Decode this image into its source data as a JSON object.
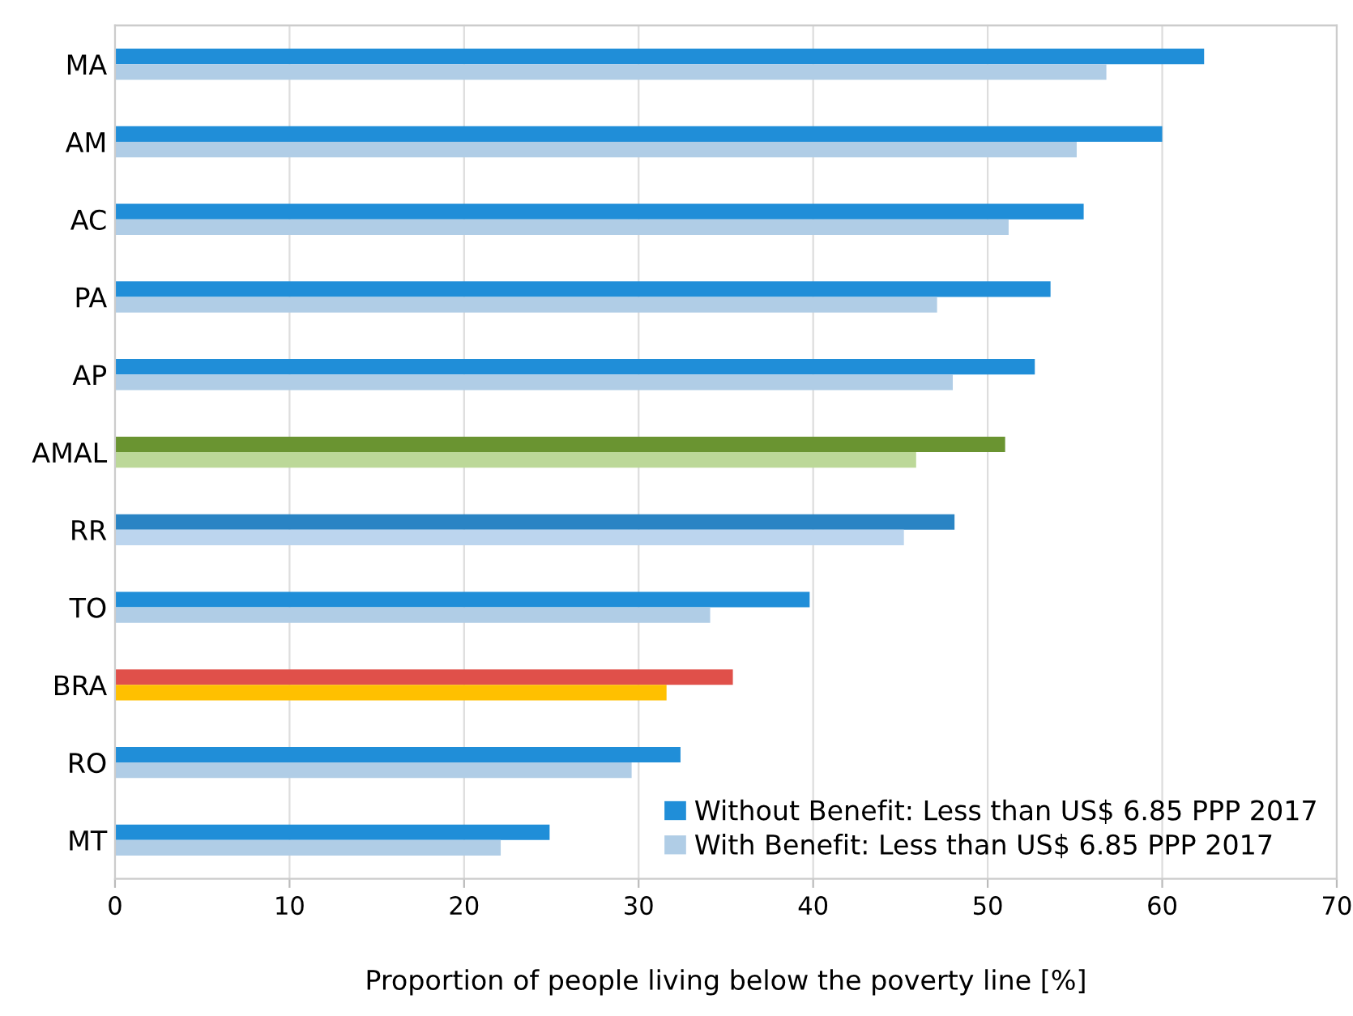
{
  "chart_data": {
    "type": "bar",
    "orientation": "horizontal",
    "xlabel": "Proportion of people living below the poverty line [%]",
    "categories": [
      "MA",
      "AM",
      "AC",
      "PA",
      "AP",
      "AMAL",
      "RR",
      "TO",
      "BRA",
      "RO",
      "MT"
    ],
    "series": [
      {
        "name": "Without Benefit: Less than US$ 6.85 PPP 2017",
        "color": "#208ed8",
        "colors": [
          "#208ed8",
          "#208ed8",
          "#208ed8",
          "#208ed8",
          "#208ed8",
          "#6a9431",
          "#2a84c4",
          "#208ed8",
          "#e0504a",
          "#208ed8",
          "#208ed8"
        ],
        "values": [
          62.4,
          60.0,
          55.5,
          53.6,
          52.7,
          51.0,
          48.1,
          39.8,
          35.4,
          32.4,
          24.9
        ]
      },
      {
        "name": "With Benefit: Less than US$ 6.85 PPP 2017",
        "color": "#b0cde6",
        "colors": [
          "#b0cde6",
          "#b0cde6",
          "#b0cde6",
          "#b0cde6",
          "#b0cde6",
          "#bcd898",
          "#bcd5ee",
          "#b0cde6",
          "#ffc000",
          "#b0cde6",
          "#b0cde6"
        ],
        "values": [
          56.8,
          55.1,
          51.2,
          47.1,
          48.0,
          45.9,
          45.2,
          34.1,
          31.6,
          29.6,
          22.1
        ]
      }
    ],
    "xlim": [
      0,
      70
    ],
    "xticks": [
      0,
      10,
      20,
      30,
      40,
      50,
      60,
      70
    ],
    "grid": "x",
    "legend": "bottom right"
  }
}
